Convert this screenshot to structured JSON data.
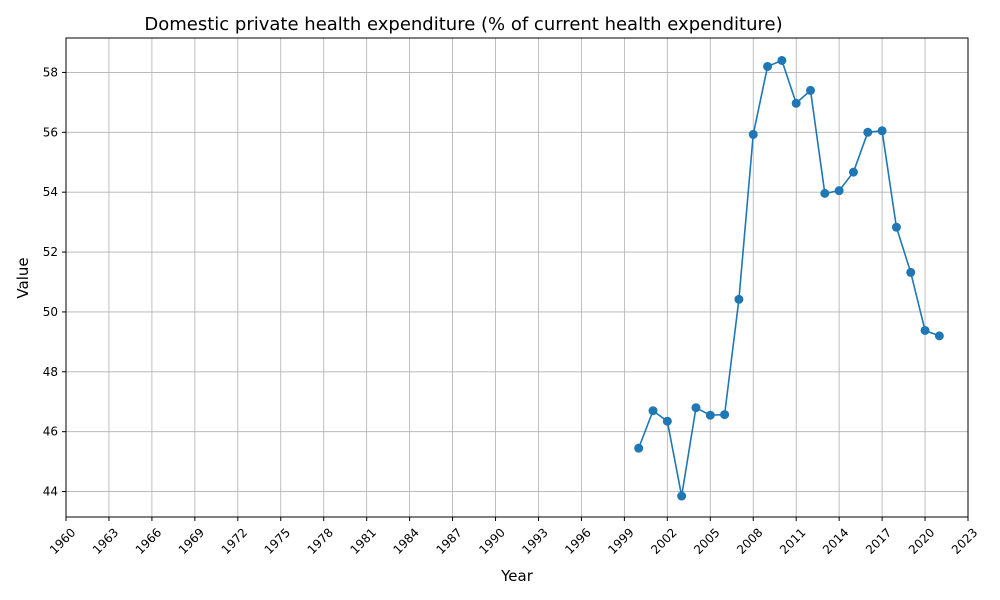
{
  "chart_data": {
    "type": "line",
    "title": "Domestic private health expenditure (% of current health expenditure)",
    "xlabel": "Year",
    "ylabel": "Value",
    "xlim": [
      1960,
      2023
    ],
    "ylim": [
      43.15,
      59.15
    ],
    "x_ticks": [
      1960,
      1963,
      1966,
      1969,
      1972,
      1975,
      1978,
      1981,
      1984,
      1987,
      1990,
      1993,
      1996,
      1999,
      2002,
      2005,
      2008,
      2011,
      2014,
      2017,
      2020,
      2023
    ],
    "y_ticks": [
      44,
      46,
      48,
      50,
      52,
      54,
      56,
      58
    ],
    "grid": true,
    "color": "#1f77b4",
    "x": [
      2000,
      2001,
      2002,
      2003,
      2004,
      2005,
      2006,
      2007,
      2008,
      2009,
      2010,
      2011,
      2012,
      2013,
      2014,
      2015,
      2016,
      2017,
      2018,
      2019,
      2020,
      2021
    ],
    "y": [
      45.45,
      46.7,
      46.35,
      43.85,
      46.8,
      46.55,
      46.57,
      50.42,
      55.93,
      58.2,
      58.4,
      56.97,
      57.4,
      53.96,
      54.05,
      54.67,
      56.0,
      56.05,
      52.83,
      51.32,
      49.38,
      49.2
    ]
  }
}
